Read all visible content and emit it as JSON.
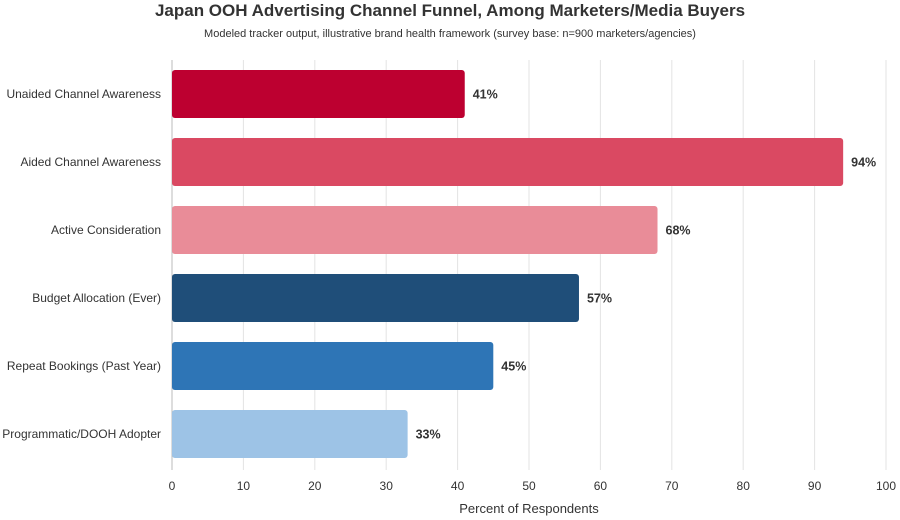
{
  "chart_data": {
    "type": "bar",
    "orientation": "horizontal",
    "title": "Japan OOH Advertising Channel Funnel, Among Marketers/Media Buyers",
    "subtitle": "Modeled tracker output, illustrative brand health framework (survey base: n=900 marketers/agencies)",
    "xlabel": "Percent of Respondents",
    "ylabel": "",
    "xlim": [
      0,
      100
    ],
    "xticks": [
      0,
      10,
      20,
      30,
      40,
      50,
      60,
      70,
      80,
      90,
      100
    ],
    "grid": true,
    "categories": [
      "Unaided Channel Awareness",
      "Aided Channel Awareness",
      "Active Consideration",
      "Budget Allocation (Ever)",
      "Repeat Bookings (Past Year)",
      "Programmatic/DOOH Adopter"
    ],
    "values": [
      41,
      94,
      68,
      57,
      45,
      33
    ],
    "value_labels": [
      "41%",
      "94%",
      "68%",
      "57%",
      "45%",
      "33%"
    ],
    "colors": [
      "#bd0030",
      "#da4962",
      "#e98c98",
      "#1f4e79",
      "#2e75b6",
      "#9dc3e6"
    ]
  }
}
